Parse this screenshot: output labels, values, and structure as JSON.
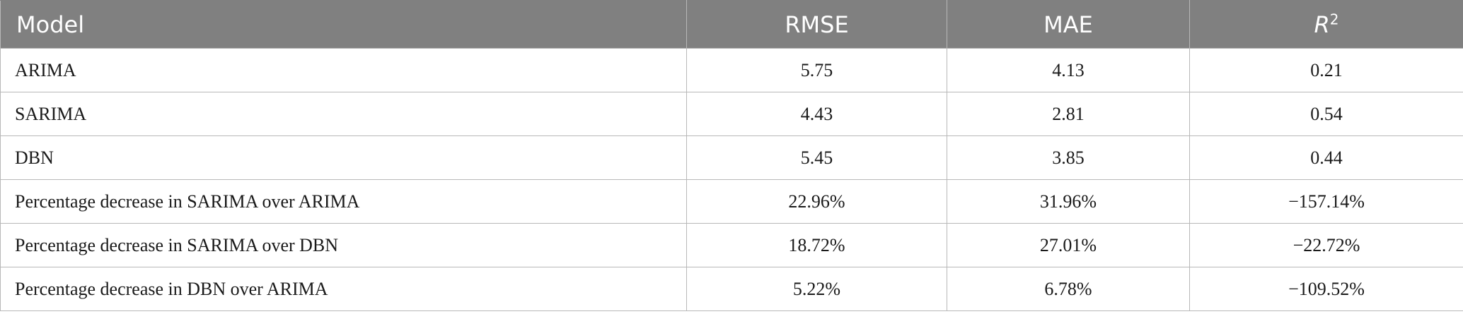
{
  "table": {
    "headers": {
      "model": "Model",
      "rmse": "RMSE",
      "mae": "MAE",
      "r2_letter": "R",
      "r2_exponent": "2"
    },
    "rows": [
      {
        "model": "ARIMA",
        "rmse": "5.75",
        "mae": "4.13",
        "r2": "0.21"
      },
      {
        "model": "SARIMA",
        "rmse": "4.43",
        "mae": "2.81",
        "r2": "0.54"
      },
      {
        "model": "DBN",
        "rmse": "5.45",
        "mae": "3.85",
        "r2": "0.44"
      },
      {
        "model": "Percentage decrease in SARIMA over ARIMA",
        "rmse": "22.96%",
        "mae": "31.96%",
        "r2": "−157.14%"
      },
      {
        "model": "Percentage decrease in SARIMA over DBN",
        "rmse": "18.72%",
        "mae": "27.01%",
        "r2": "−22.72%"
      },
      {
        "model": "Percentage decrease in DBN over ARIMA",
        "rmse": "5.22%",
        "mae": "6.78%",
        "r2": "−109.52%"
      }
    ]
  }
}
